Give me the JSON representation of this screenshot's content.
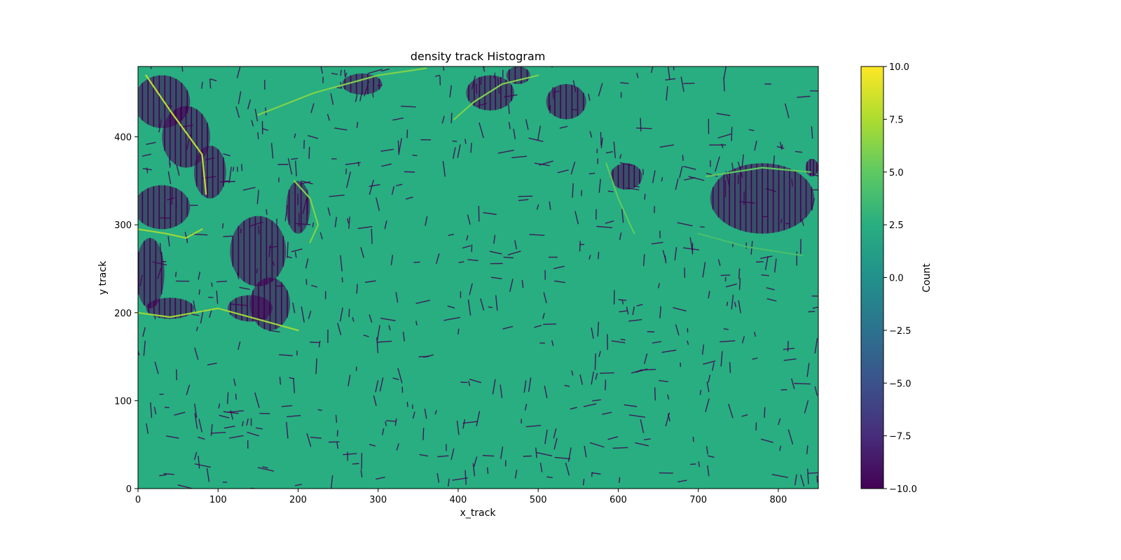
{
  "chart_data": {
    "type": "heatmap",
    "title": "density track Histogram",
    "xlabel": "x_track",
    "ylabel": "y track",
    "xlim": [
      0,
      850
    ],
    "ylim": [
      0,
      480
    ],
    "x_ticks": [
      0,
      100,
      200,
      300,
      400,
      500,
      600,
      700,
      800
    ],
    "y_ticks": [
      0,
      100,
      200,
      300,
      400
    ],
    "colorbar": {
      "label": "Count",
      "range": [
        -10,
        10
      ],
      "ticks": [
        -10.0,
        -7.5,
        -5.0,
        -2.5,
        0.0,
        2.5,
        5.0,
        7.5,
        10.0
      ],
      "tick_labels": [
        "−10.0",
        "−7.5",
        "−5.0",
        "−2.5",
        "0.0",
        "2.5",
        "5.0",
        "7.5",
        "10.0"
      ],
      "colormap": "viridis"
    },
    "background_value": 2.5,
    "grid": false,
    "dense_regions": [
      {
        "x": 30,
        "y": 440,
        "rx": 35,
        "ry": 30,
        "value": -10
      },
      {
        "x": 60,
        "y": 400,
        "rx": 30,
        "ry": 35,
        "value": -10
      },
      {
        "x": 90,
        "y": 360,
        "rx": 20,
        "ry": 30,
        "value": -10
      },
      {
        "x": 30,
        "y": 320,
        "rx": 35,
        "ry": 25,
        "value": -10
      },
      {
        "x": 15,
        "y": 245,
        "rx": 18,
        "ry": 40,
        "value": -10
      },
      {
        "x": 40,
        "y": 205,
        "rx": 30,
        "ry": 12,
        "value": -10
      },
      {
        "x": 150,
        "y": 270,
        "rx": 35,
        "ry": 40,
        "value": -10
      },
      {
        "x": 165,
        "y": 210,
        "rx": 25,
        "ry": 30,
        "value": -10
      },
      {
        "x": 140,
        "y": 205,
        "rx": 28,
        "ry": 15,
        "value": -10
      },
      {
        "x": 200,
        "y": 320,
        "rx": 15,
        "ry": 30,
        "value": -10
      },
      {
        "x": 280,
        "y": 460,
        "rx": 25,
        "ry": 12,
        "value": -10
      },
      {
        "x": 440,
        "y": 450,
        "rx": 30,
        "ry": 20,
        "value": -10
      },
      {
        "x": 475,
        "y": 470,
        "rx": 15,
        "ry": 10,
        "value": -10
      },
      {
        "x": 535,
        "y": 440,
        "rx": 25,
        "ry": 20,
        "value": -10
      },
      {
        "x": 610,
        "y": 355,
        "rx": 20,
        "ry": 15,
        "value": -10
      },
      {
        "x": 780,
        "y": 330,
        "rx": 65,
        "ry": 40,
        "value": -10
      },
      {
        "x": 842,
        "y": 365,
        "rx": 8,
        "ry": 10,
        "value": -10
      }
    ],
    "bright_lines": [
      {
        "points": [
          [
            10,
            470
          ],
          [
            40,
            430
          ],
          [
            80,
            380
          ],
          [
            85,
            335
          ]
        ],
        "value": 8
      },
      {
        "points": [
          [
            0,
            295
          ],
          [
            35,
            290
          ],
          [
            60,
            285
          ],
          [
            80,
            295
          ]
        ],
        "value": 7
      },
      {
        "points": [
          [
            0,
            200
          ],
          [
            40,
            195
          ],
          [
            100,
            205
          ],
          [
            160,
            190
          ],
          [
            200,
            180
          ]
        ],
        "value": 7
      },
      {
        "points": [
          [
            150,
            425
          ],
          [
            220,
            450
          ],
          [
            300,
            470
          ],
          [
            360,
            478
          ]
        ],
        "value": 6
      },
      {
        "points": [
          [
            195,
            350
          ],
          [
            215,
            330
          ],
          [
            225,
            300
          ],
          [
            215,
            280
          ]
        ],
        "value": 6
      },
      {
        "points": [
          [
            395,
            420
          ],
          [
            420,
            440
          ],
          [
            455,
            460
          ],
          [
            500,
            470
          ]
        ],
        "value": 6
      },
      {
        "points": [
          [
            585,
            370
          ],
          [
            600,
            330
          ],
          [
            620,
            290
          ]
        ],
        "value": 5
      },
      {
        "points": [
          [
            710,
            355
          ],
          [
            780,
            365
          ],
          [
            840,
            360
          ]
        ],
        "value": 5
      },
      {
        "points": [
          [
            700,
            290
          ],
          [
            760,
            275
          ],
          [
            830,
            265
          ]
        ],
        "value": 4
      }
    ]
  }
}
